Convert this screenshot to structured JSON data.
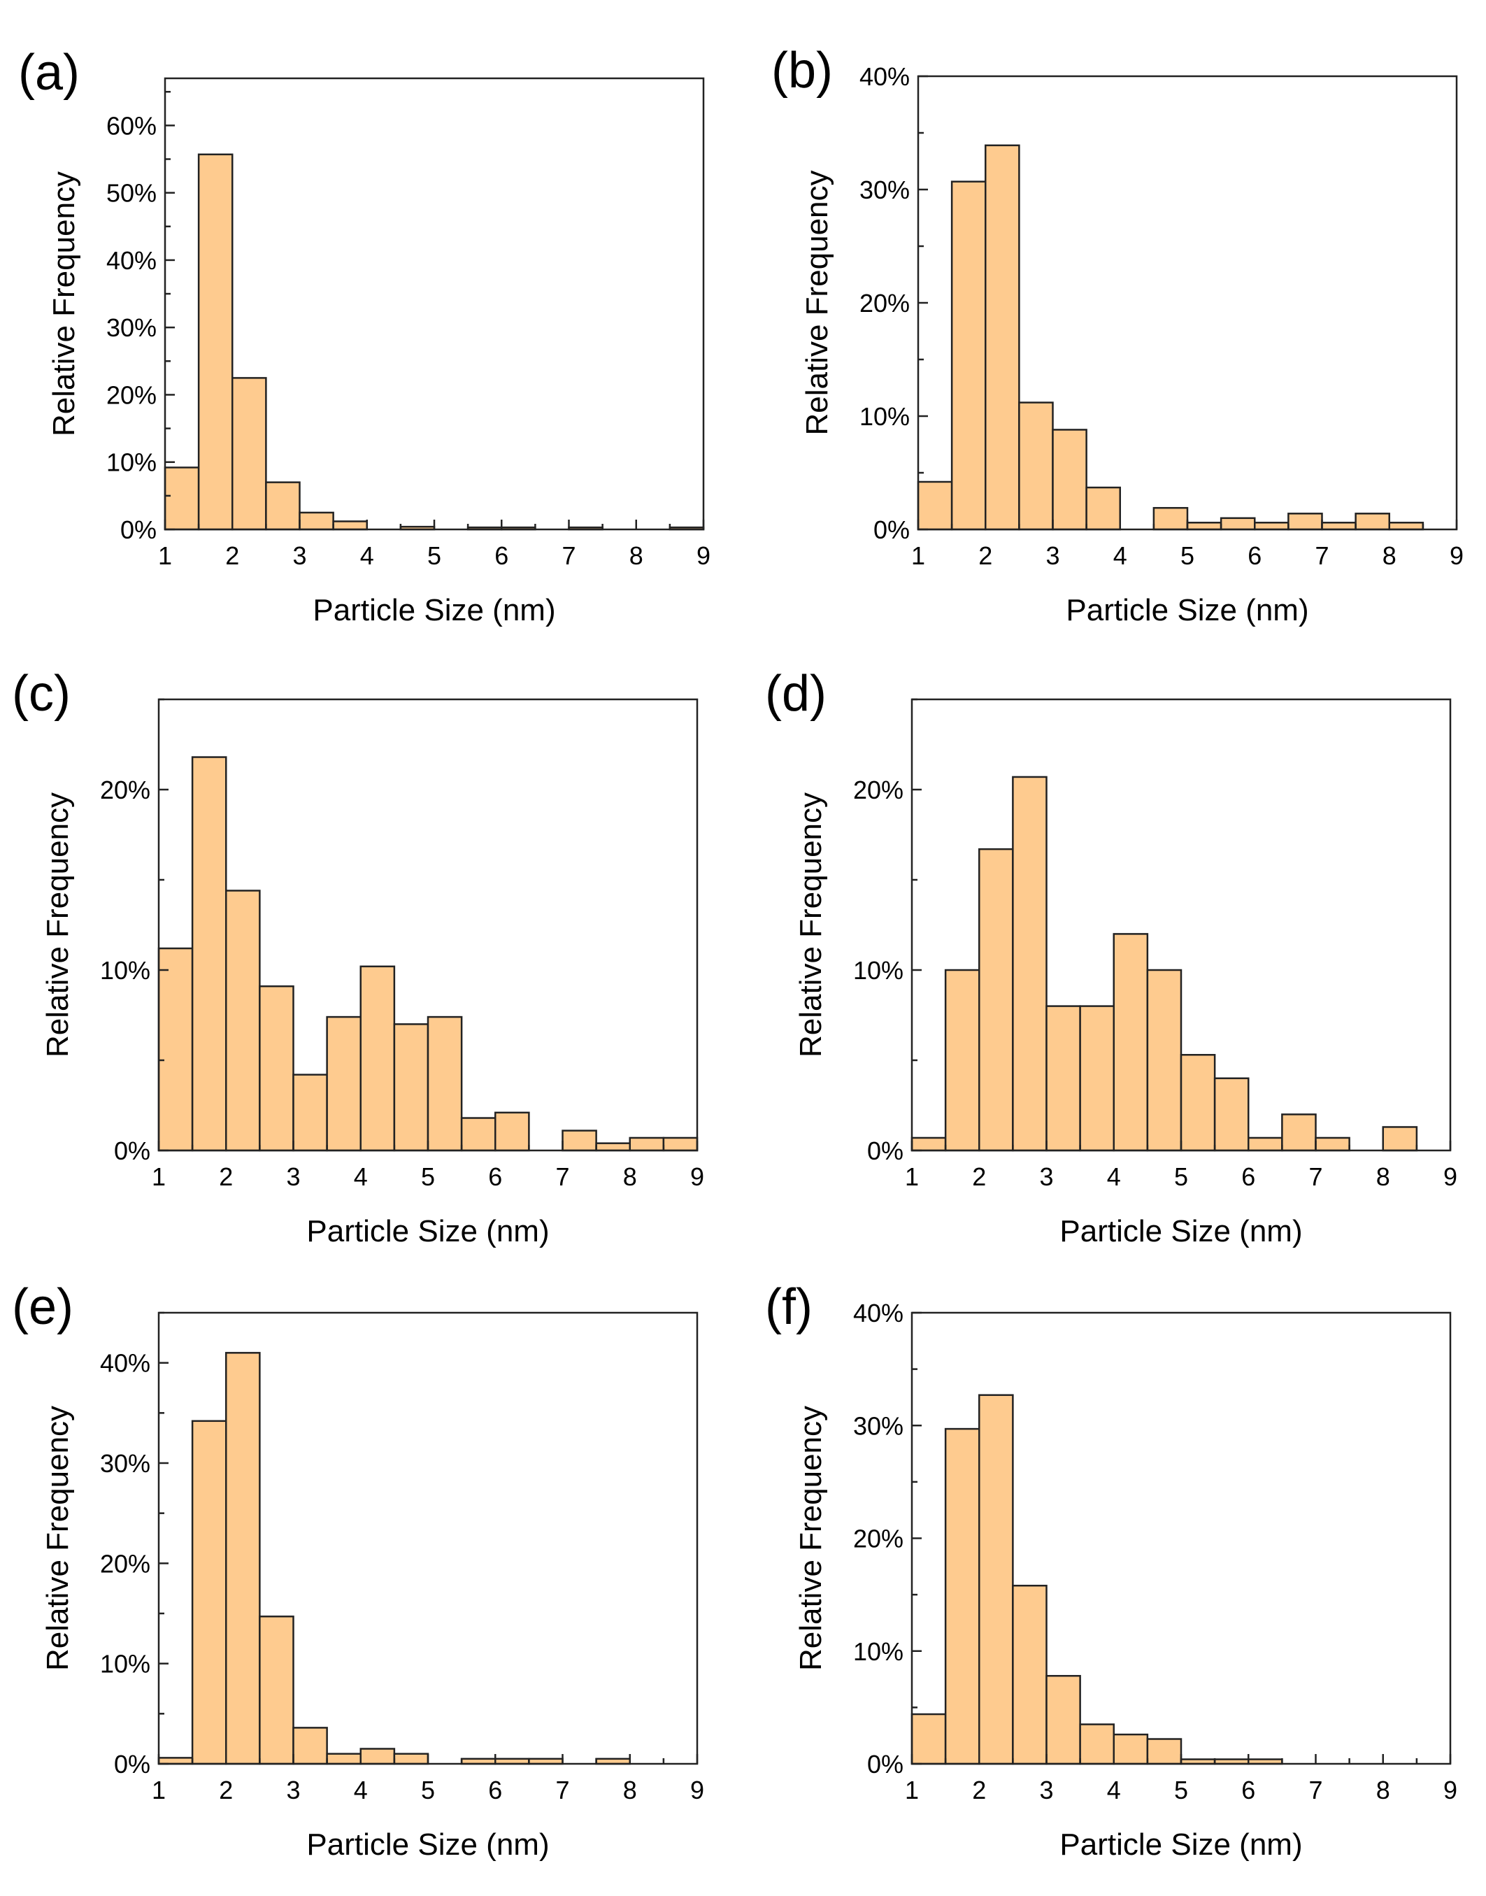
{
  "colors": {
    "bar_fill": "#FECB8F",
    "bar_edge": "#222222",
    "axis": "#222222"
  },
  "chart_data": [
    {
      "panel": "(a)",
      "type": "bar",
      "bin_width": 0.5,
      "bin_start": [
        1,
        1.5,
        2,
        2.5,
        3,
        3.5,
        4,
        4.5,
        5,
        5.5,
        6,
        6.5,
        7,
        7.5,
        8,
        8.5
      ],
      "values": [
        9.2,
        55.7,
        22.5,
        7.0,
        2.5,
        1.2,
        0,
        0.4,
        0,
        0.3,
        0.3,
        0,
        0.3,
        0,
        0,
        0.3
      ],
      "xlabel": "Particle Size (nm)",
      "ylabel": "Relative Frequency",
      "xlim": [
        1,
        9
      ],
      "ylim": [
        0,
        67
      ],
      "xticks": [
        "1",
        "2",
        "3",
        "4",
        "5",
        "6",
        "7",
        "8",
        "9"
      ],
      "yticks": [
        0,
        10,
        20,
        30,
        40,
        50,
        60
      ],
      "yticklabels": [
        "0%",
        "10%",
        "20%",
        "30%",
        "40%",
        "50%",
        "60%"
      ],
      "grid": false
    },
    {
      "panel": "(b)",
      "type": "bar",
      "bin_width": 0.5,
      "bin_start": [
        1,
        1.5,
        2,
        2.5,
        3,
        3.5,
        4,
        4.5,
        5,
        5.5,
        6,
        6.5,
        7,
        7.5,
        8,
        8.5
      ],
      "values": [
        4.2,
        30.7,
        33.9,
        11.2,
        8.8,
        3.7,
        0,
        1.9,
        0.6,
        1.0,
        0.6,
        1.4,
        0.6,
        1.4,
        0.6,
        0
      ],
      "xlabel": "Particle Size (nm)",
      "ylabel": "Relative Frequency",
      "xlim": [
        1,
        9
      ],
      "ylim": [
        0,
        40
      ],
      "xticks": [
        "1",
        "2",
        "3",
        "4",
        "5",
        "6",
        "7",
        "8",
        "9"
      ],
      "yticks": [
        0,
        10,
        20,
        30,
        40
      ],
      "yticklabels": [
        "0%",
        "10%",
        "20%",
        "30%",
        "40%"
      ],
      "grid": false
    },
    {
      "panel": "(c)",
      "type": "bar",
      "bin_width": 0.5,
      "bin_start": [
        1,
        1.5,
        2,
        2.5,
        3,
        3.5,
        4,
        4.5,
        5,
        5.5,
        6,
        6.5,
        7,
        7.5,
        8,
        8.5
      ],
      "values": [
        11.2,
        21.8,
        14.4,
        9.1,
        4.2,
        7.4,
        10.2,
        7.0,
        7.4,
        1.8,
        2.1,
        0,
        1.1,
        0.4,
        0.7,
        0.7
      ],
      "xlabel": "Particle Size (nm)",
      "ylabel": "Relative Frequency",
      "xlim": [
        1,
        9
      ],
      "ylim": [
        0,
        25
      ],
      "xticks": [
        "1",
        "2",
        "3",
        "4",
        "5",
        "6",
        "7",
        "8",
        "9"
      ],
      "yticks": [
        0,
        10,
        20
      ],
      "yticklabels": [
        "0%",
        "10%",
        "20%"
      ],
      "grid": false
    },
    {
      "panel": "(d)",
      "type": "bar",
      "bin_width": 0.5,
      "bin_start": [
        1,
        1.5,
        2,
        2.5,
        3,
        3.5,
        4,
        4.5,
        5,
        5.5,
        6,
        6.5,
        7,
        7.5,
        8,
        8.5
      ],
      "values": [
        0.7,
        10.0,
        16.7,
        20.7,
        8.0,
        8.0,
        12.0,
        10.0,
        5.3,
        4.0,
        0.7,
        2.0,
        0.7,
        0,
        1.3,
        0
      ],
      "xlabel": "Particle Size (nm)",
      "ylabel": "Relative Frequency",
      "xlim": [
        1,
        9
      ],
      "ylim": [
        0,
        25
      ],
      "xticks": [
        "1",
        "2",
        "3",
        "4",
        "5",
        "6",
        "7",
        "8",
        "9"
      ],
      "yticks": [
        0,
        10,
        20
      ],
      "yticklabels": [
        "0%",
        "10%",
        "20%"
      ],
      "grid": false
    },
    {
      "panel": "(e)",
      "type": "bar",
      "bin_width": 0.5,
      "bin_start": [
        1,
        1.5,
        2,
        2.5,
        3,
        3.5,
        4,
        4.5,
        5,
        5.5,
        6,
        6.5,
        7,
        7.5,
        8,
        8.5
      ],
      "values": [
        0.6,
        34.2,
        41.0,
        14.7,
        3.6,
        1.0,
        1.5,
        1.0,
        0,
        0.5,
        0.5,
        0.5,
        0,
        0.5,
        0,
        0
      ],
      "xlabel": "Particle Size (nm)",
      "ylabel": "Relative Frequency",
      "xlim": [
        1,
        9
      ],
      "ylim": [
        0,
        45
      ],
      "xticks": [
        "1",
        "2",
        "3",
        "4",
        "5",
        "6",
        "7",
        "8",
        "9"
      ],
      "yticks": [
        0,
        10,
        20,
        30,
        40
      ],
      "yticklabels": [
        "0%",
        "10%",
        "20%",
        "30%",
        "40%"
      ],
      "grid": false
    },
    {
      "panel": "(f)",
      "type": "bar",
      "bin_width": 0.5,
      "bin_start": [
        1,
        1.5,
        2,
        2.5,
        3,
        3.5,
        4,
        4.5,
        5,
        5.5,
        6,
        6.5,
        7,
        7.5,
        8,
        8.5
      ],
      "values": [
        4.4,
        29.7,
        32.7,
        15.8,
        7.8,
        3.5,
        2.6,
        2.2,
        0.4,
        0.4,
        0.4,
        0,
        0,
        0,
        0,
        0
      ],
      "xlabel": "Particle Size (nm)",
      "ylabel": "Relative Frequency",
      "xlim": [
        1,
        9
      ],
      "ylim": [
        0,
        40
      ],
      "xticks": [
        "1",
        "2",
        "3",
        "4",
        "5",
        "6",
        "7",
        "8",
        "9"
      ],
      "yticks": [
        0,
        10,
        20,
        30,
        40
      ],
      "yticklabels": [
        "0%",
        "10%",
        "20%",
        "30%",
        "40%"
      ],
      "grid": false
    }
  ]
}
